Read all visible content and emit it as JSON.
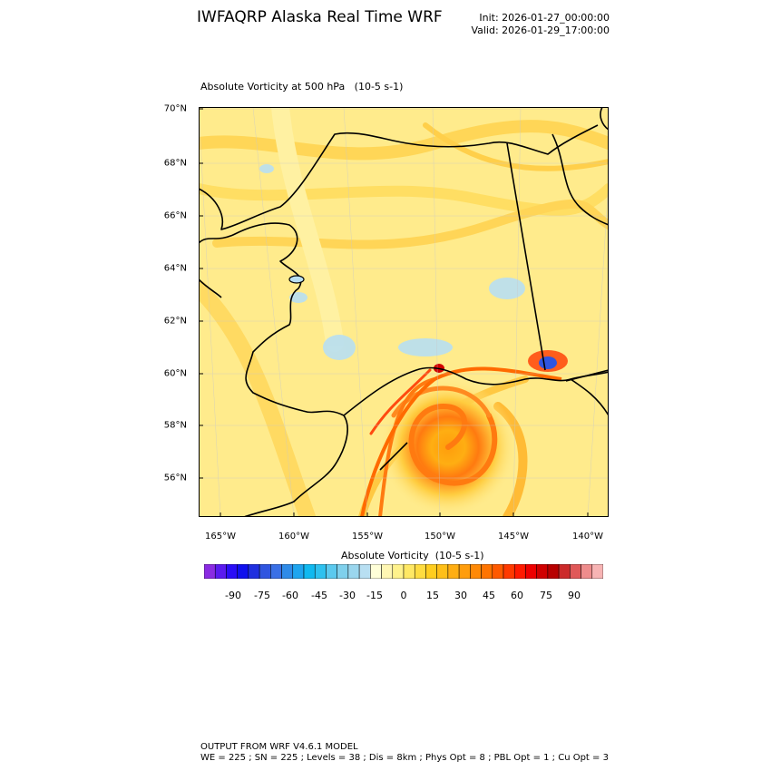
{
  "header": {
    "title": "IWFAQRP Alaska Real Time WRF",
    "init": "Init: 2026-01-27_00:00:00",
    "valid": "Valid: 2026-01-29_17:00:00"
  },
  "plot": {
    "subtitle": "Absolute Vorticity at 500 hPa   (10-5 s-1)",
    "lat_labels": [
      "70°N",
      "68°N",
      "66°N",
      "64°N",
      "62°N",
      "60°N",
      "58°N",
      "56°N"
    ],
    "lon_labels": [
      "165°W",
      "160°W",
      "155°W",
      "150°W",
      "145°W",
      "140°W"
    ]
  },
  "colorbar": {
    "title": "Absolute Vorticity  (10-5 s-1)",
    "labels": [
      "-90",
      "-75",
      "-60",
      "-45",
      "-30",
      "-15",
      "0",
      "15",
      "30",
      "45",
      "60",
      "75",
      "90"
    ],
    "colors": [
      "#8a2be2",
      "#5a1aef",
      "#2a0df7",
      "#1010ee",
      "#2030e0",
      "#2f55e0",
      "#3a70e6",
      "#2f8be8",
      "#1ea5ef",
      "#10b9f0",
      "#2ec1ef",
      "#5bc9ee",
      "#7fd0ec",
      "#9ad6ee",
      "#b8dff2",
      "#ffffd8",
      "#fff7b3",
      "#fff28c",
      "#ffe864",
      "#ffdc40",
      "#ffcd1f",
      "#ffbf18",
      "#ffae12",
      "#ff9d0c",
      "#ff8906",
      "#ff7400",
      "#ff5a00",
      "#ff3a00",
      "#ff1a00",
      "#ee0000",
      "#d00000",
      "#b80000",
      "#cc2a2a",
      "#e05858",
      "#ee8c8c",
      "#f7b4b4"
    ]
  },
  "footer": {
    "line1": "OUTPUT FROM WRF V4.6.1 MODEL",
    "line2": "WE = 225 ; SN = 225 ; Levels = 38 ; Dis = 8km ; Phys Opt = 8 ; PBL Opt = 1 ; Cu Opt = 3"
  }
}
